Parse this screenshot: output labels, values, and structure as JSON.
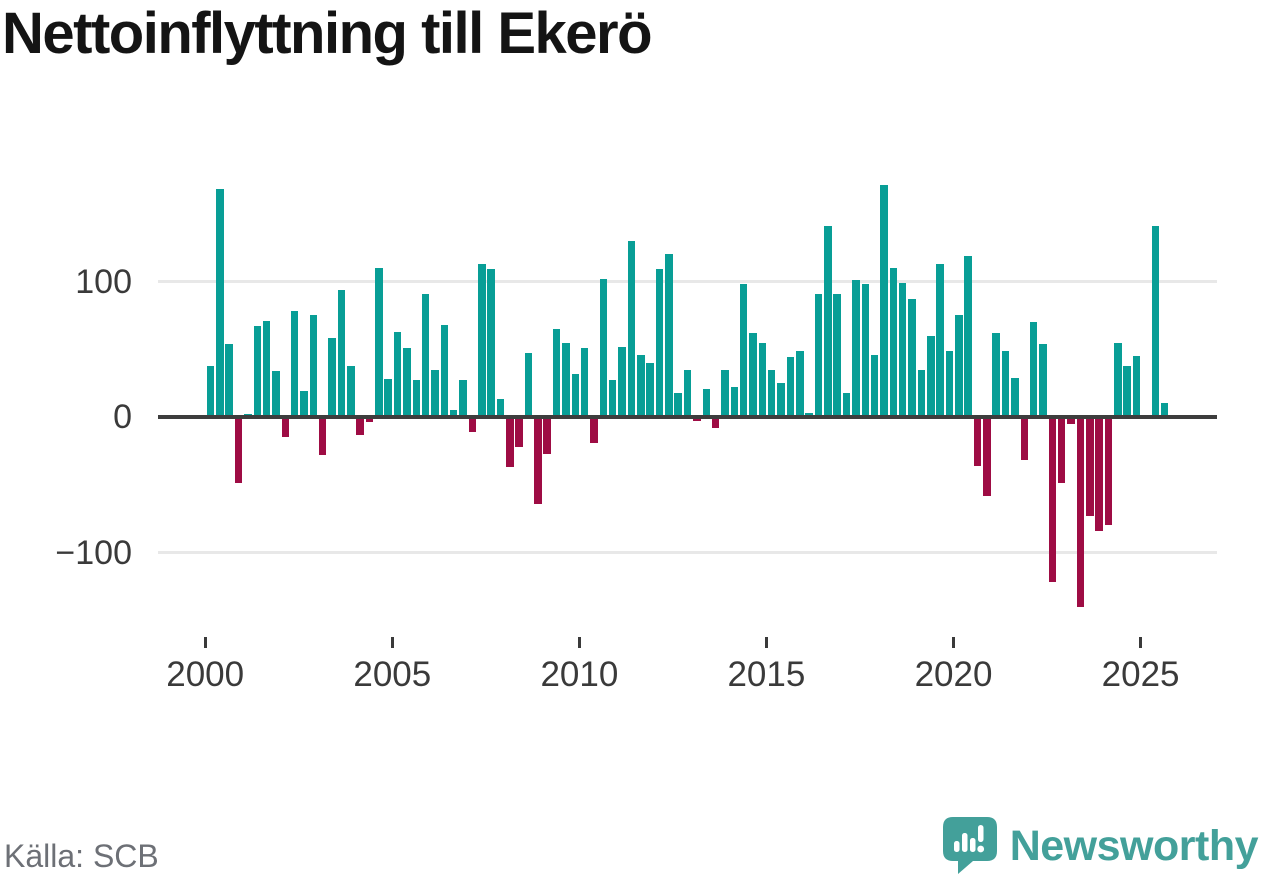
{
  "title": "Nettoinflyttning till Ekerö",
  "source": "Källa: SCB",
  "branding": {
    "name": "Newsworthy",
    "logo_icon": "speech-bubble-with-bar-chart-and-exclamation"
  },
  "colors": {
    "bar_positive": "#089e96",
    "bar_negative": "#9e0c44",
    "brand_teal": "#43a09a",
    "axis_text": "#3a3a3a",
    "grid_line": "#e8e8e8",
    "zero_line": "#3d3d3d",
    "source_text": "#6d7076",
    "title_text": "#141414",
    "background": "#ffffff"
  },
  "chart_data": {
    "type": "bar",
    "title": "Nettoinflyttning till Ekerö",
    "xlabel": "",
    "ylabel": "",
    "legend": "none",
    "grid": "horizontal at y=100 and y=-100, dark zero baseline",
    "ylim": [
      -150,
      180
    ],
    "yticks": [
      {
        "value": 100,
        "label": "100"
      },
      {
        "value": 0,
        "label": "0"
      },
      {
        "value": -100,
        "label": "−100"
      }
    ],
    "xticks": [
      {
        "value": 2000,
        "label": "2000"
      },
      {
        "value": 2005,
        "label": "2005"
      },
      {
        "value": 2010,
        "label": "2010"
      },
      {
        "value": 2015,
        "label": "2015"
      },
      {
        "value": 2020,
        "label": "2020"
      },
      {
        "value": 2025,
        "label": "2025"
      }
    ],
    "x": [
      "2000Q1",
      "2000Q2",
      "2000Q3",
      "2000Q4",
      "2001Q1",
      "2001Q2",
      "2001Q3",
      "2001Q4",
      "2002Q1",
      "2002Q2",
      "2002Q3",
      "2002Q4",
      "2003Q1",
      "2003Q2",
      "2003Q3",
      "2003Q4",
      "2004Q1",
      "2004Q2",
      "2004Q3",
      "2004Q4",
      "2005Q1",
      "2005Q2",
      "2005Q3",
      "2005Q4",
      "2006Q1",
      "2006Q2",
      "2006Q3",
      "2006Q4",
      "2007Q1",
      "2007Q2",
      "2007Q3",
      "2007Q4",
      "2008Q1",
      "2008Q2",
      "2008Q3",
      "2008Q4",
      "2009Q1",
      "2009Q2",
      "2009Q3",
      "2009Q4",
      "2010Q1",
      "2010Q2",
      "2010Q3",
      "2010Q4",
      "2011Q1",
      "2011Q2",
      "2011Q3",
      "2011Q4",
      "2012Q1",
      "2012Q2",
      "2012Q3",
      "2012Q4",
      "2013Q1",
      "2013Q2",
      "2013Q3",
      "2013Q4",
      "2014Q1",
      "2014Q2",
      "2014Q3",
      "2014Q4",
      "2015Q1",
      "2015Q2",
      "2015Q3",
      "2015Q4",
      "2016Q1",
      "2016Q2",
      "2016Q3",
      "2016Q4",
      "2017Q1",
      "2017Q2",
      "2017Q3",
      "2017Q4",
      "2018Q1",
      "2018Q2",
      "2018Q3",
      "2018Q4",
      "2019Q1",
      "2019Q2",
      "2019Q3",
      "2019Q4",
      "2020Q1",
      "2020Q2",
      "2020Q3",
      "2020Q4",
      "2021Q1",
      "2021Q2",
      "2021Q3",
      "2021Q4",
      "2022Q1",
      "2022Q2",
      "2022Q3",
      "2022Q4",
      "2023Q1",
      "2023Q2",
      "2023Q3",
      "2023Q4",
      "2024Q1",
      "2024Q2",
      "2024Q3",
      "2024Q4",
      "2025Q1",
      "2025Q2",
      "2025Q3"
    ],
    "values": [
      38,
      168,
      54,
      -49,
      2,
      67,
      71,
      34,
      -15,
      78,
      19,
      75,
      -28,
      58,
      94,
      38,
      -13,
      -4,
      110,
      28,
      63,
      51,
      27,
      91,
      35,
      68,
      5,
      27,
      -11,
      113,
      109,
      13,
      -37,
      -22,
      47,
      -64,
      -27,
      65,
      55,
      32,
      51,
      -19,
      102,
      27,
      52,
      130,
      46,
      40,
      109,
      120,
      18,
      35,
      -3,
      21,
      -8,
      35,
      22,
      98,
      62,
      55,
      35,
      25,
      44,
      49,
      3,
      91,
      141,
      91,
      18,
      101,
      98,
      46,
      171,
      110,
      99,
      87,
      35,
      60,
      113,
      49,
      75,
      119,
      -36,
      -58,
      62,
      49,
      29,
      -32,
      70,
      54,
      -122,
      -49,
      -5,
      -140,
      -73,
      -84,
      -80,
      55,
      38,
      45,
      0,
      141,
      10
    ]
  }
}
